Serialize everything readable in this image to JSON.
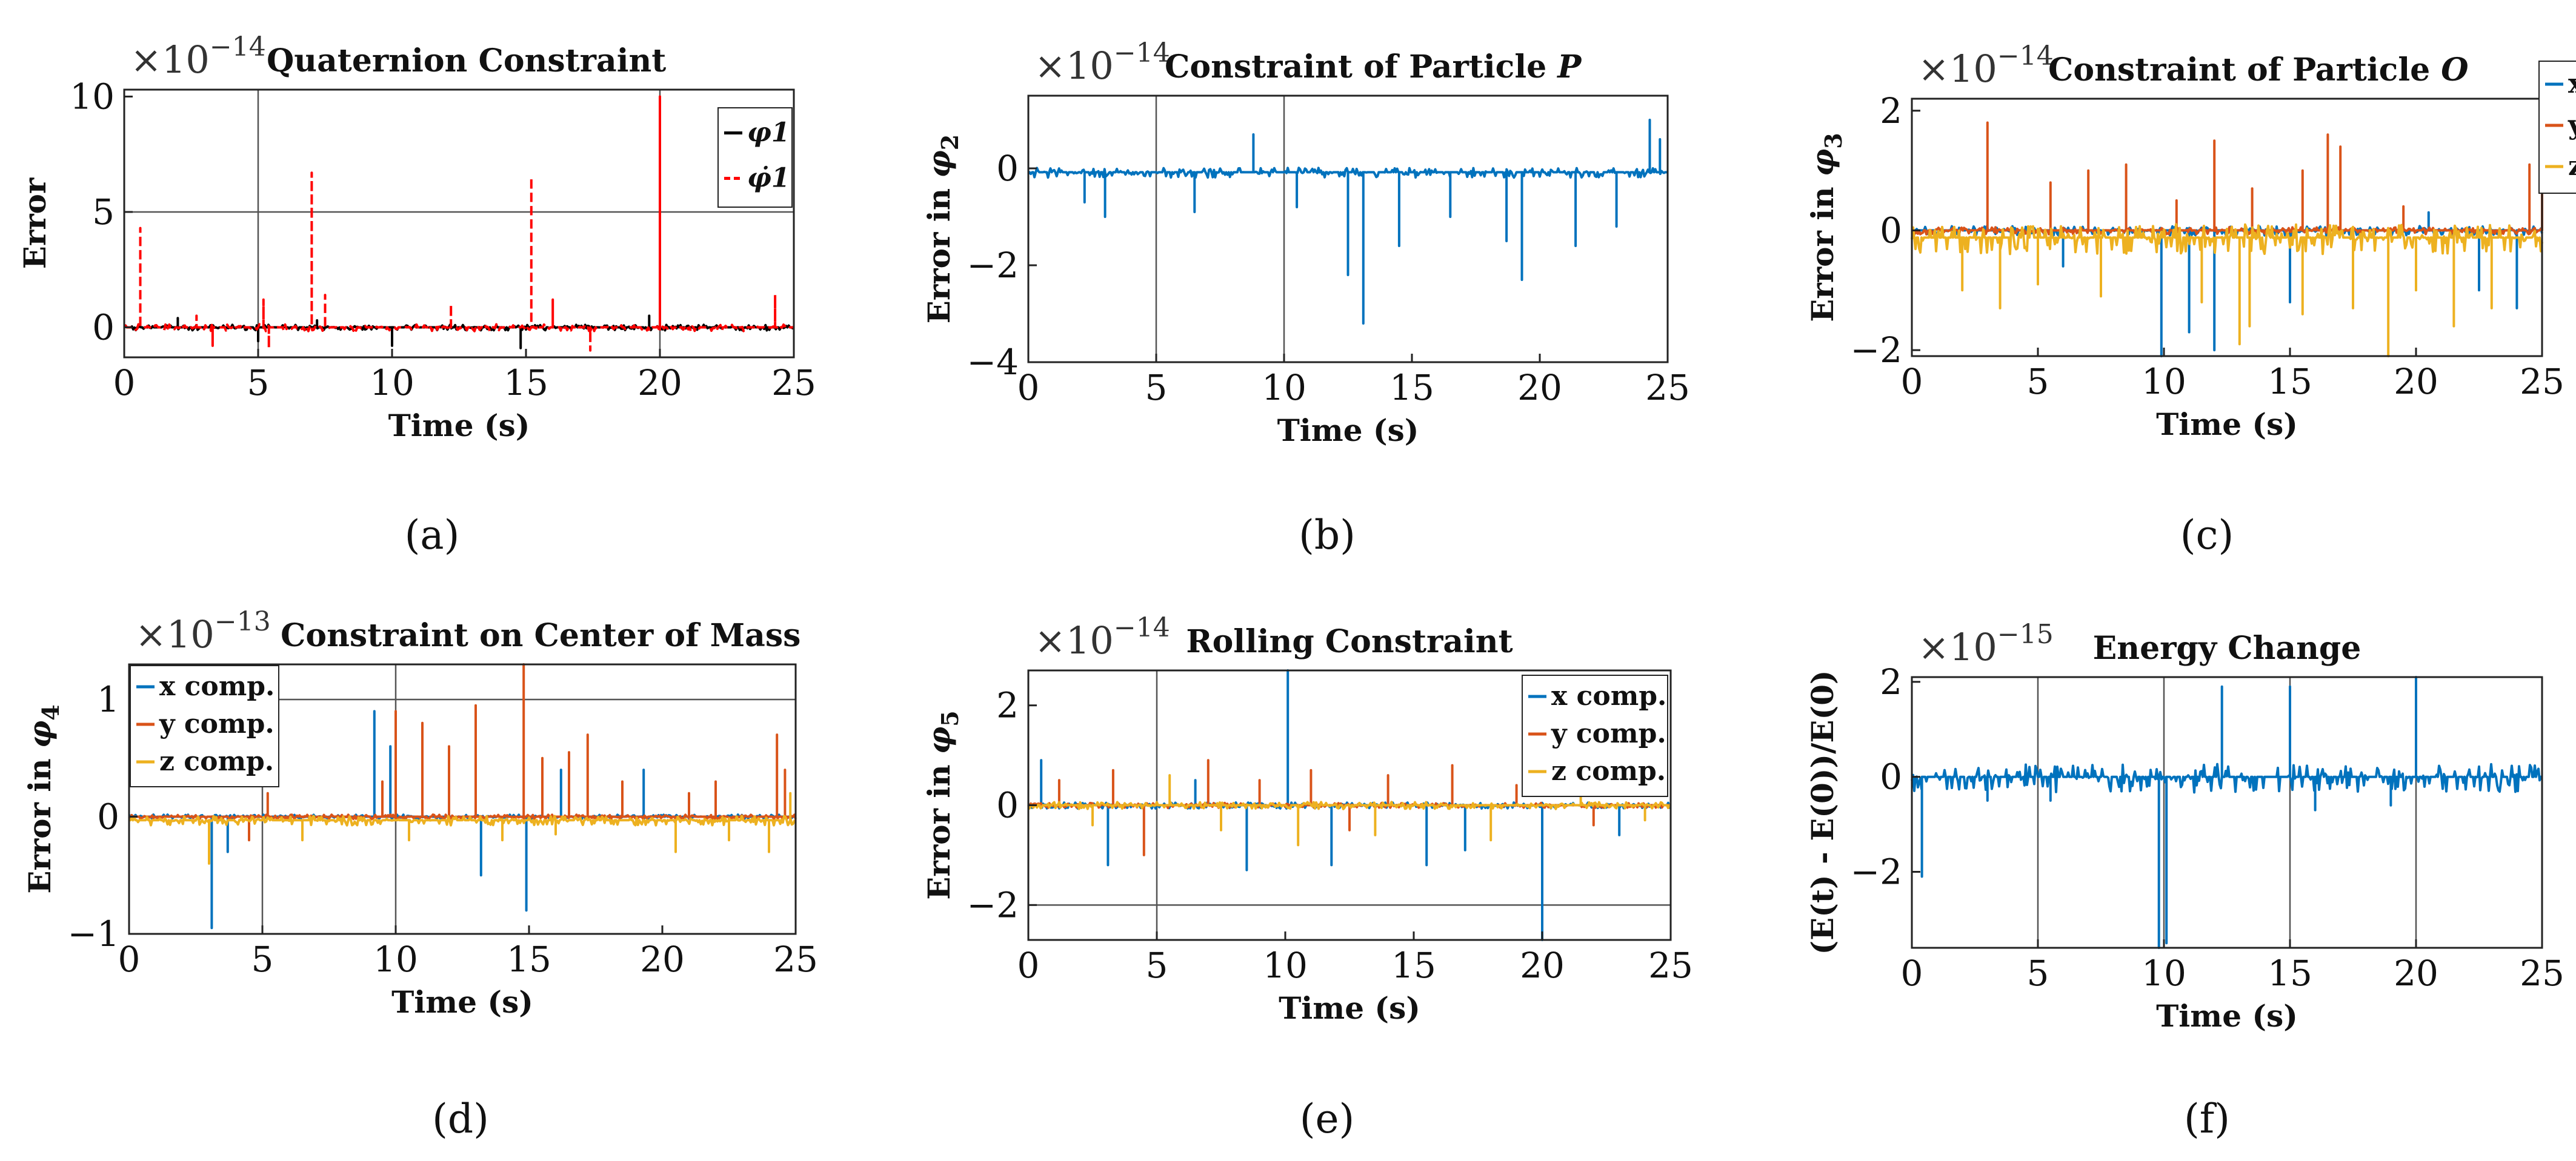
{
  "colors": {
    "blue": "#0072BD",
    "orange": "#D95319",
    "yellow": "#EDB120",
    "black": "#000000",
    "red": "#FF0000"
  },
  "chart_data": [
    {
      "id": "a",
      "type": "line",
      "caption_letter": "a",
      "title": "Quaternion Constraint",
      "exponent": "−14",
      "xlabel": "Time (s)",
      "ylabel": "Error",
      "xlim": [
        0,
        25
      ],
      "ylim": [
        -1.3,
        10.3
      ],
      "xticks": [
        0,
        5,
        10,
        15,
        20,
        25
      ],
      "xtick_labels": [
        "0",
        "5",
        "10",
        "15",
        "20",
        "25"
      ],
      "yticks": [
        0,
        5,
        10
      ],
      "ytick_labels": [
        "0",
        "5",
        "10"
      ],
      "grid_x": [
        5,
        20
      ],
      "grid_y": [
        5
      ],
      "legend": {
        "entries": [
          "φ1",
          "φ̇1"
        ],
        "position": "right"
      },
      "series": [
        {
          "name": "φ1",
          "color": "#000000",
          "dashed": false,
          "baseline": 0,
          "noise": 0.12,
          "spikes": [
            [
              2.0,
              0.4
            ],
            [
              5.0,
              -0.6
            ],
            [
              7.2,
              0.3
            ],
            [
              10.0,
              -0.8
            ],
            [
              14.8,
              -0.9
            ],
            [
              19.6,
              0.5
            ],
            [
              20.0,
              0.4
            ]
          ]
        },
        {
          "name": "φ̇1",
          "color": "#FF0000",
          "dashed": true,
          "baseline": 0,
          "noise": 0.15,
          "spikes": [
            [
              0.6,
              4.3
            ],
            [
              5.2,
              1.2
            ],
            [
              5.4,
              -0.9
            ],
            [
              7.0,
              6.7
            ],
            [
              7.5,
              1.4
            ],
            [
              12.2,
              1.0
            ],
            [
              15.2,
              6.5
            ],
            [
              16.0,
              1.2
            ],
            [
              17.4,
              -1.0
            ],
            [
              20.0,
              10.0
            ],
            [
              24.3,
              1.4
            ],
            [
              3.3,
              -0.8
            ],
            [
              2.7,
              0.5
            ]
          ]
        }
      ]
    },
    {
      "id": "b",
      "type": "line",
      "caption_letter": "b",
      "title": "Constraint of Particle",
      "title_italic": "P",
      "exponent": "−14",
      "xlabel": "Time (s)",
      "ylabel_prefix": "Error in ",
      "ylabel_sym": "φ",
      "ylabel_sub": "2",
      "xlim": [
        0,
        25
      ],
      "ylim": [
        -4,
        1.5
      ],
      "xticks": [
        0,
        5,
        10,
        15,
        20,
        25
      ],
      "xtick_labels": [
        "0",
        "5",
        "10",
        "15",
        "20",
        "25"
      ],
      "yticks": [
        -4,
        -2,
        0
      ],
      "ytick_labels": [
        "−4",
        "−2",
        "0"
      ],
      "grid_x": [
        5,
        10
      ],
      "grid_y": [],
      "series": [
        {
          "name": "",
          "color": "#0072BD",
          "dashed": false,
          "baseline": -0.08,
          "noise": 0.1,
          "spikes": [
            [
              8.8,
              0.7
            ],
            [
              13.1,
              -3.2
            ],
            [
              12.5,
              -2.2
            ],
            [
              14.5,
              -1.6
            ],
            [
              18.7,
              -1.5
            ],
            [
              19.3,
              -2.3
            ],
            [
              21.4,
              -1.6
            ],
            [
              23.0,
              -1.2
            ],
            [
              24.3,
              1.0
            ],
            [
              24.7,
              0.6
            ],
            [
              3.0,
              -1.0
            ],
            [
              6.5,
              -0.9
            ],
            [
              10.5,
              -0.8
            ],
            [
              16.5,
              -1.0
            ],
            [
              2.2,
              -0.7
            ]
          ]
        }
      ]
    },
    {
      "id": "c",
      "type": "line",
      "caption_letter": "c",
      "title": "Constraint of Particle",
      "title_italic": "O",
      "exponent": "−14",
      "xlabel": "Time (s)",
      "ylabel_prefix": "Error in ",
      "ylabel_sym": "φ",
      "ylabel_sub": "3",
      "xlim": [
        0,
        25
      ],
      "ylim": [
        -2.1,
        2.2
      ],
      "xticks": [
        0,
        5,
        10,
        15,
        20,
        25
      ],
      "xtick_labels": [
        "0",
        "5",
        "10",
        "15",
        "20",
        "25"
      ],
      "yticks": [
        -2,
        0,
        2
      ],
      "ytick_labels": [
        "−2",
        "0",
        "2"
      ],
      "grid_x": [],
      "grid_y": [],
      "legend": {
        "entries": [
          "x comp.",
          "y comp.",
          "z comp."
        ],
        "position": "outside-right"
      },
      "series": [
        {
          "name": "x comp.",
          "color": "#0072BD",
          "dashed": false,
          "baseline": 0,
          "noise": 0.08,
          "spikes": [
            [
              9.9,
              -2.1
            ],
            [
              11.0,
              -1.7
            ],
            [
              12.0,
              -2.0
            ],
            [
              15.0,
              -1.2
            ],
            [
              22.5,
              -1.0
            ],
            [
              24.0,
              -1.3
            ],
            [
              6.0,
              -0.6
            ],
            [
              20.5,
              0.3
            ]
          ]
        },
        {
          "name": "y comp.",
          "color": "#D95319",
          "dashed": false,
          "baseline": 0,
          "noise": 0.06,
          "spikes": [
            [
              3.0,
              1.8
            ],
            [
              5.5,
              0.8
            ],
            [
              7.0,
              1.0
            ],
            [
              8.5,
              1.1
            ],
            [
              10.5,
              0.5
            ],
            [
              12.0,
              1.5
            ],
            [
              13.5,
              0.7
            ],
            [
              15.5,
              1.0
            ],
            [
              16.5,
              1.6
            ],
            [
              17.0,
              1.4
            ],
            [
              24.5,
              1.1
            ],
            [
              25.0,
              0.6
            ],
            [
              19.5,
              0.4
            ]
          ]
        },
        {
          "name": "z comp.",
          "color": "#EDB120",
          "dashed": false,
          "baseline": -0.12,
          "noise": 0.25,
          "spikes": [
            [
              2.0,
              -1.0
            ],
            [
              3.5,
              -1.3
            ],
            [
              5.0,
              -0.9
            ],
            [
              7.5,
              -1.1
            ],
            [
              11.5,
              -1.2
            ],
            [
              13.0,
              -1.9
            ],
            [
              13.4,
              -1.6
            ],
            [
              15.5,
              -1.4
            ],
            [
              17.5,
              -1.3
            ],
            [
              18.9,
              -2.1
            ],
            [
              20.0,
              -1.0
            ],
            [
              21.5,
              -1.6
            ],
            [
              23.0,
              -1.3
            ]
          ]
        }
      ]
    },
    {
      "id": "d",
      "type": "line",
      "caption_letter": "d",
      "title": "Constraint on Center of Mass",
      "exponent": "−13",
      "xlabel": "Time (s)",
      "ylabel_prefix": "Error in ",
      "ylabel_sym": "φ",
      "ylabel_sub": "4",
      "xlim": [
        0,
        25
      ],
      "ylim": [
        -1,
        1.3
      ],
      "xticks": [
        0,
        5,
        10,
        15,
        20,
        25
      ],
      "xtick_labels": [
        "0",
        "5",
        "10",
        "15",
        "20",
        "25"
      ],
      "yticks": [
        -1,
        0,
        1
      ],
      "ytick_labels": [
        "−1",
        "0",
        "1"
      ],
      "grid_x": [
        5,
        10
      ],
      "grid_y": [
        1
      ],
      "legend": {
        "entries": [
          "x comp.",
          "y comp.",
          "z comp."
        ],
        "position": "top-left"
      },
      "series": [
        {
          "name": "x comp.",
          "color": "#0072BD",
          "dashed": false,
          "baseline": 0,
          "noise": 0.02,
          "spikes": [
            [
              3.1,
              -0.95
            ],
            [
              9.2,
              0.9
            ],
            [
              9.8,
              0.6
            ],
            [
              13.2,
              -0.5
            ],
            [
              14.9,
              -0.8
            ],
            [
              16.2,
              0.4
            ],
            [
              19.3,
              0.4
            ],
            [
              3.7,
              -0.3
            ]
          ]
        },
        {
          "name": "y comp.",
          "color": "#D95319",
          "dashed": false,
          "baseline": 0,
          "noise": 0.02,
          "spikes": [
            [
              5.2,
              0.2
            ],
            [
              9.5,
              0.3
            ],
            [
              10.0,
              0.9
            ],
            [
              11.0,
              0.8
            ],
            [
              12.0,
              0.6
            ],
            [
              13.0,
              0.95
            ],
            [
              14.8,
              1.3
            ],
            [
              15.5,
              0.5
            ],
            [
              16.5,
              0.55
            ],
            [
              17.2,
              0.7
            ],
            [
              18.5,
              0.3
            ],
            [
              21.0,
              0.2
            ],
            [
              22.0,
              0.3
            ],
            [
              24.3,
              0.7
            ],
            [
              24.6,
              0.4
            ],
            [
              4.5,
              -0.2
            ]
          ]
        },
        {
          "name": "z comp.",
          "color": "#EDB120",
          "dashed": false,
          "baseline": -0.03,
          "noise": 0.04,
          "spikes": [
            [
              3.0,
              -0.4
            ],
            [
              6.5,
              -0.2
            ],
            [
              10.5,
              -0.2
            ],
            [
              14.0,
              -0.2
            ],
            [
              16.0,
              -0.15
            ],
            [
              20.5,
              -0.3
            ],
            [
              22.5,
              -0.2
            ],
            [
              24.0,
              -0.3
            ],
            [
              24.8,
              0.2
            ]
          ]
        }
      ]
    },
    {
      "id": "e",
      "type": "line",
      "caption_letter": "e",
      "title": "Rolling Constraint",
      "exponent": "−14",
      "xlabel": "Time (s)",
      "ylabel_prefix": "Error in ",
      "ylabel_sym": "φ",
      "ylabel_sub": "5",
      "xlim": [
        0,
        25
      ],
      "ylim": [
        -2.7,
        2.7
      ],
      "xticks": [
        0,
        5,
        10,
        15,
        20,
        25
      ],
      "xtick_labels": [
        "0",
        "5",
        "10",
        "15",
        "20",
        "25"
      ],
      "yticks": [
        -2,
        0,
        2
      ],
      "ytick_labels": [
        "−2",
        "0",
        "2"
      ],
      "grid_x": [
        5
      ],
      "grid_y": [
        -2
      ],
      "legend": {
        "entries": [
          "x comp.",
          "y comp.",
          "z comp."
        ],
        "position": "top-right"
      },
      "series": [
        {
          "name": "x comp.",
          "color": "#0072BD",
          "dashed": false,
          "baseline": 0,
          "noise": 0.06,
          "spikes": [
            [
              0.5,
              0.9
            ],
            [
              3.1,
              -1.2
            ],
            [
              8.5,
              -1.3
            ],
            [
              10.1,
              2.7
            ],
            [
              11.8,
              -1.2
            ],
            [
              15.5,
              -1.2
            ],
            [
              17.0,
              -0.9
            ],
            [
              20.0,
              -2.7
            ],
            [
              23.0,
              -0.6
            ],
            [
              6.5,
              0.5
            ]
          ]
        },
        {
          "name": "y comp.",
          "color": "#D95319",
          "dashed": false,
          "baseline": 0,
          "noise": 0.05,
          "spikes": [
            [
              1.2,
              0.5
            ],
            [
              3.3,
              0.7
            ],
            [
              4.5,
              -1.0
            ],
            [
              7.0,
              0.9
            ],
            [
              9.0,
              0.5
            ],
            [
              11.0,
              0.7
            ],
            [
              12.5,
              -0.5
            ],
            [
              14.0,
              0.6
            ],
            [
              16.5,
              0.8
            ],
            [
              19.0,
              0.4
            ],
            [
              22.0,
              -0.4
            ]
          ]
        },
        {
          "name": "z comp.",
          "color": "#EDB120",
          "dashed": false,
          "baseline": 0,
          "noise": 0.07,
          "spikes": [
            [
              2.5,
              -0.4
            ],
            [
              5.5,
              0.6
            ],
            [
              7.5,
              -0.5
            ],
            [
              10.5,
              -0.8
            ],
            [
              13.5,
              -0.6
            ],
            [
              18.0,
              -0.7
            ],
            [
              21.5,
              0.4
            ],
            [
              24.0,
              -0.3
            ]
          ]
        }
      ]
    },
    {
      "id": "f",
      "type": "line",
      "caption_letter": "f",
      "title": "Energy Change",
      "exponent": "−15",
      "xlabel": "Time (s)",
      "ylabel": "(E(t) - E(0))/E(0)",
      "xlim": [
        0,
        25
      ],
      "ylim": [
        -3.6,
        2.1
      ],
      "xticks": [
        0,
        5,
        10,
        15,
        20,
        25
      ],
      "xtick_labels": [
        "0",
        "5",
        "10",
        "15",
        "20",
        "25"
      ],
      "yticks": [
        -2,
        0,
        2
      ],
      "ytick_labels": [
        "−2",
        "0",
        "2"
      ],
      "grid_x": [
        5,
        10,
        15,
        20
      ],
      "grid_y": [],
      "series": [
        {
          "name": "",
          "color": "#0072BD",
          "dashed": false,
          "baseline": 0,
          "noise": 0.3,
          "spikes": [
            [
              0.4,
              -2.1
            ],
            [
              9.8,
              -3.6
            ],
            [
              10.1,
              -3.5
            ],
            [
              12.3,
              1.9
            ],
            [
              15.0,
              1.9
            ],
            [
              20.0,
              2.1
            ],
            [
              3.0,
              -0.5
            ],
            [
              16.0,
              -0.7
            ],
            [
              19.0,
              -0.6
            ],
            [
              5.5,
              -0.5
            ]
          ]
        }
      ]
    }
  ]
}
